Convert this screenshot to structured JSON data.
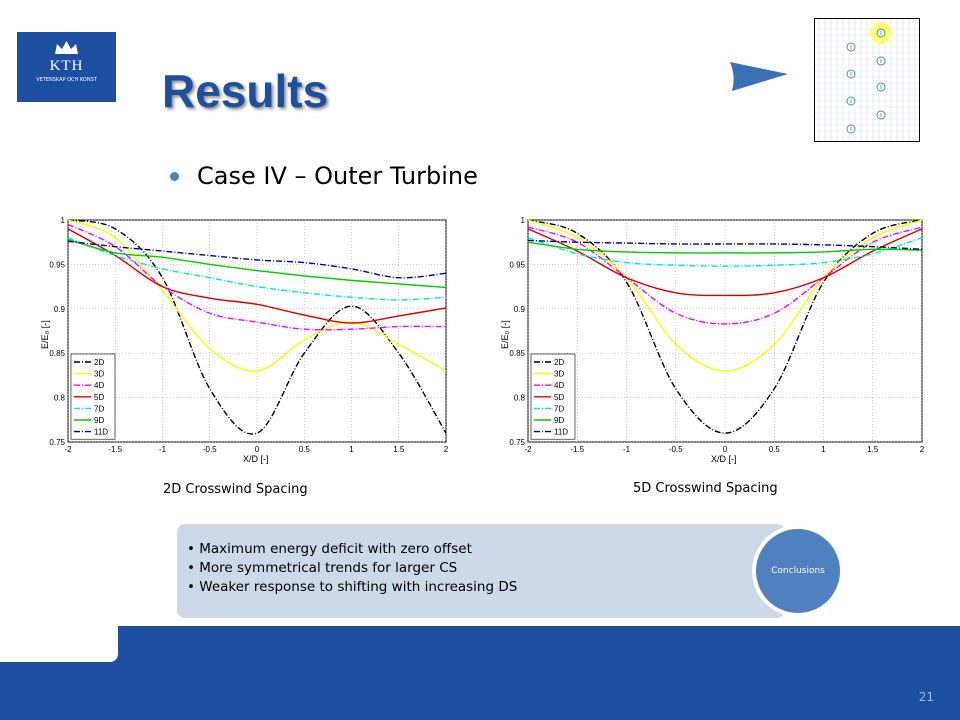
{
  "logo": {
    "text": "KTH",
    "subtext": "VETENSKAP OCH KONST"
  },
  "title": "Results",
  "subtitle": "Case IV – Outer Turbine",
  "colors": {
    "brand": "#1c4fa0",
    "accent": "#4f81c0",
    "panel": "#cdd8e8"
  },
  "conclusions": {
    "label": "Conclusions",
    "items": [
      "Maximum energy deficit with zero offset",
      "More symmetrical trends for larger CS",
      "Weaker response to shifting with increasing DS"
    ]
  },
  "page_number": "21",
  "chart_data": [
    {
      "type": "line",
      "caption": "2D Crosswind Spacing",
      "xlabel": "X/D [-]",
      "ylabel": "E/E₀ [-]",
      "xlim": [
        -2,
        2
      ],
      "ylim": [
        0.75,
        1
      ],
      "xticks": [
        "-2",
        "-1.5",
        "-1",
        "-0.5",
        "0",
        "0.5",
        "1",
        "1.5",
        "2"
      ],
      "yticks": [
        "0.75",
        "0.8",
        "0.85",
        "0.9",
        "0.95",
        "1"
      ],
      "grid": true,
      "legend": "bottom-left",
      "x": [
        -2,
        -1.5,
        -1,
        -0.5,
        0,
        0.5,
        1,
        1.5,
        2
      ],
      "series": [
        {
          "name": "2D",
          "color": "#000000",
          "dash": "6,2,1,2",
          "values": [
            1.0,
            0.99,
            0.935,
            0.81,
            0.76,
            0.85,
            0.903,
            0.85,
            0.76
          ]
        },
        {
          "name": "3D",
          "color": "#ffff00",
          "dash": "",
          "values": [
            1.0,
            0.98,
            0.92,
            0.855,
            0.83,
            0.865,
            0.885,
            0.86,
            0.83
          ]
        },
        {
          "name": "4D",
          "color": "#ff00ff",
          "dash": "6,2,1,2",
          "values": [
            0.995,
            0.97,
            0.925,
            0.895,
            0.885,
            0.877,
            0.877,
            0.88,
            0.88
          ]
        },
        {
          "name": "5D",
          "color": "#dd0000",
          "dash": "",
          "values": [
            0.99,
            0.96,
            0.925,
            0.912,
            0.905,
            0.893,
            0.884,
            0.892,
            0.901
          ]
        },
        {
          "name": "7D",
          "color": "#00e5e5",
          "dash": "6,2,1,2",
          "values": [
            0.98,
            0.96,
            0.945,
            0.935,
            0.925,
            0.918,
            0.913,
            0.91,
            0.913
          ]
        },
        {
          "name": "9D",
          "color": "#00cc00",
          "dash": "",
          "values": [
            0.978,
            0.963,
            0.958,
            0.95,
            0.943,
            0.937,
            0.932,
            0.928,
            0.924
          ]
        },
        {
          "name": "11D",
          "color": "#000099",
          "dash": "6,2,1,2",
          "values": [
            0.976,
            0.97,
            0.965,
            0.96,
            0.955,
            0.952,
            0.945,
            0.935,
            0.94
          ]
        }
      ]
    },
    {
      "type": "line",
      "caption": "5D Crosswind Spacing",
      "xlabel": "X/D [-]",
      "ylabel": "E/E₀ [-]",
      "xlim": [
        -2,
        2
      ],
      "ylim": [
        0.75,
        1
      ],
      "xticks": [
        "-2",
        "-1.5",
        "-1",
        "-0.5",
        "0",
        "0.5",
        "1",
        "1.5",
        "2"
      ],
      "yticks": [
        "0.75",
        "0.8",
        "0.85",
        "0.9",
        "0.95",
        "1"
      ],
      "grid": true,
      "legend": "bottom-left",
      "x": [
        -2,
        -1.5,
        -1,
        -0.5,
        0,
        0.5,
        1,
        1.5,
        2
      ],
      "series": [
        {
          "name": "2D",
          "color": "#000000",
          "dash": "6,2,1,2",
          "values": [
            1.0,
            0.985,
            0.93,
            0.81,
            0.76,
            0.81,
            0.93,
            0.985,
            1.0
          ]
        },
        {
          "name": "3D",
          "color": "#ffff00",
          "dash": "",
          "values": [
            1.0,
            0.98,
            0.935,
            0.86,
            0.83,
            0.86,
            0.935,
            0.98,
            1.0
          ]
        },
        {
          "name": "4D",
          "color": "#ff00ff",
          "dash": "6,2,1,2",
          "values": [
            0.992,
            0.975,
            0.935,
            0.895,
            0.883,
            0.895,
            0.935,
            0.975,
            0.992
          ]
        },
        {
          "name": "5D",
          "color": "#dd0000",
          "dash": "",
          "values": [
            0.99,
            0.965,
            0.935,
            0.918,
            0.915,
            0.918,
            0.935,
            0.965,
            0.99
          ]
        },
        {
          "name": "7D",
          "color": "#00e5e5",
          "dash": "6,2,1,2",
          "values": [
            0.98,
            0.962,
            0.952,
            0.949,
            0.948,
            0.949,
            0.952,
            0.962,
            0.98
          ]
        },
        {
          "name": "9D",
          "color": "#00cc00",
          "dash": "",
          "values": [
            0.975,
            0.967,
            0.964,
            0.963,
            0.963,
            0.963,
            0.964,
            0.967,
            0.966
          ]
        },
        {
          "name": "11D",
          "color": "#000099",
          "dash": "6,2,1,2",
          "values": [
            0.977,
            0.975,
            0.974,
            0.973,
            0.973,
            0.973,
            0.972,
            0.97,
            0.967
          ]
        }
      ]
    }
  ]
}
